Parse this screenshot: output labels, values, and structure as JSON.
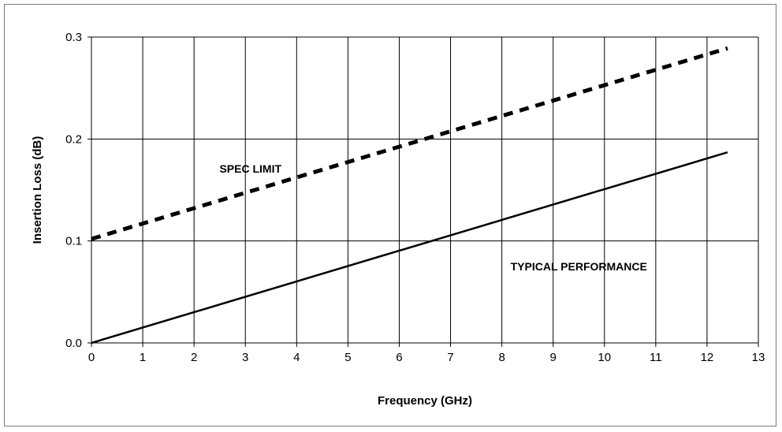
{
  "chart_data": {
    "type": "line",
    "title": "",
    "xlabel": "Frequency (GHz)",
    "ylabel": "Insertion Loss (dB)",
    "xlim": [
      0,
      13
    ],
    "ylim": [
      0,
      0.3
    ],
    "x_ticks": [
      0,
      1,
      2,
      3,
      4,
      5,
      6,
      7,
      8,
      9,
      10,
      11,
      12,
      13
    ],
    "x_tick_labels": [
      "0",
      "1",
      "2",
      "3",
      "4",
      "5",
      "6",
      "7",
      "8",
      "9",
      "10",
      "11",
      "12",
      "13"
    ],
    "y_ticks": [
      0,
      0.1,
      0.2,
      0.3
    ],
    "y_tick_labels": [
      "0.0",
      "0.1",
      "0.2",
      "0.3"
    ],
    "grid": true,
    "series": [
      {
        "name": "SPEC LIMIT",
        "style": "dashed",
        "color": "#000000",
        "x": [
          0,
          12.4
        ],
        "y": [
          0.102,
          0.289
        ]
      },
      {
        "name": "TYPICAL PERFORMANCE",
        "style": "solid",
        "color": "#000000",
        "x": [
          0,
          12.4
        ],
        "y": [
          0.0,
          0.187
        ]
      }
    ],
    "annotations": [
      {
        "text": "SPEC LIMIT",
        "x": 3.1,
        "y": 0.171
      },
      {
        "text": "TYPICAL PERFORMANCE",
        "x": 9.5,
        "y": 0.075
      }
    ]
  }
}
